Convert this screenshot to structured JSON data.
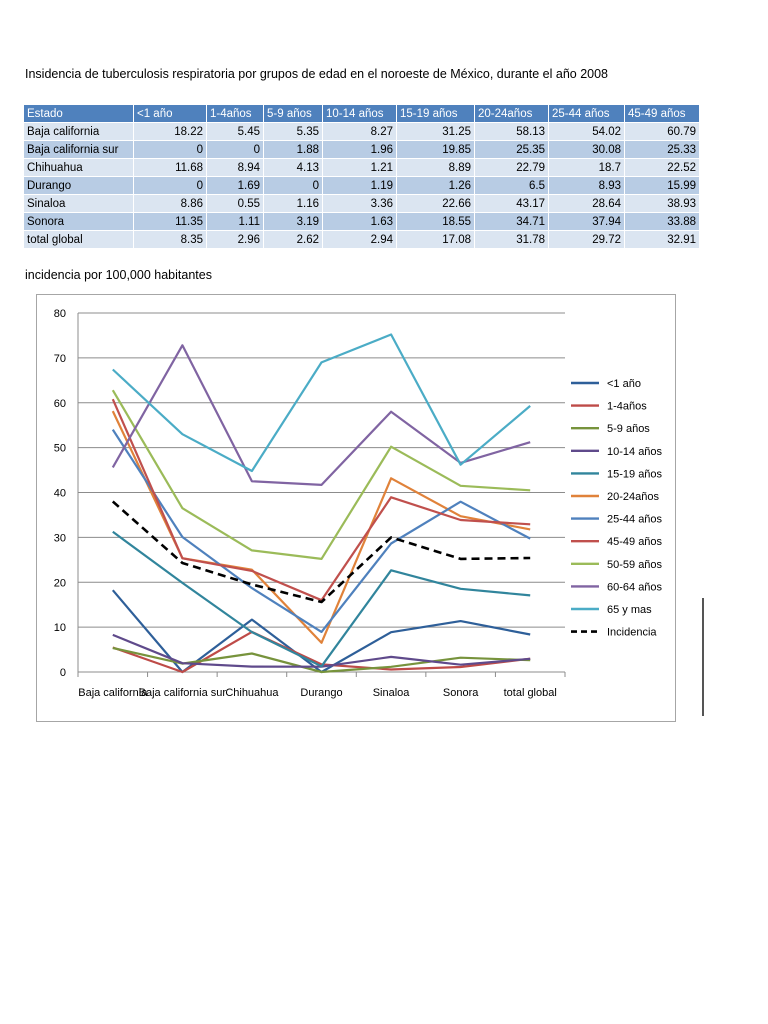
{
  "title": "Insidencia de tuberculosis respiratoria  por grupos de edad en el noroeste de México, durante el año 2008",
  "table": {
    "headers": [
      "Estado",
      "<1 año",
      "1-4años",
      "5-9 años",
      "10-14 años",
      "15-19 años",
      "20-24años",
      "25-44 años",
      "45-49 años"
    ],
    "rows": [
      [
        "Baja california",
        "18.22",
        "5.45",
        "5.35",
        "8.27",
        "31.25",
        "58.13",
        "54.02",
        "60.79"
      ],
      [
        "Baja california sur",
        "0",
        "0",
        "1.88",
        "1.96",
        "19.85",
        "25.35",
        "30.08",
        "25.33"
      ],
      [
        "Chihuahua",
        "11.68",
        "8.94",
        "4.13",
        "1.21",
        "8.89",
        "22.79",
        "18.7",
        "22.52"
      ],
      [
        "Durango",
        "0",
        "1.69",
        "0",
        "1.19",
        "1.26",
        "6.5",
        "8.93",
        "15.99"
      ],
      [
        "Sinaloa",
        "8.86",
        "0.55",
        "1.16",
        "3.36",
        "22.66",
        "43.17",
        "28.64",
        "38.93"
      ],
      [
        "Sonora",
        "11.35",
        "1.11",
        "3.19",
        "1.63",
        "18.55",
        "34.71",
        "37.94",
        "33.88"
      ],
      [
        "total global",
        "8.35",
        "2.96",
        "2.62",
        "2.94",
        "17.08",
        "31.78",
        "29.72",
        "32.91"
      ]
    ]
  },
  "subtitle": "incidencia por 100,000 habitantes",
  "chart_data": {
    "type": "line",
    "categories": [
      "Baja california",
      "Baja california sur",
      "Chihuahua",
      "Durango",
      "Sinaloa",
      "Sonora",
      "total global"
    ],
    "ylim": [
      0,
      80
    ],
    "yticks": [
      0,
      10,
      20,
      30,
      40,
      50,
      60,
      70,
      80
    ],
    "grid": true,
    "legend": "right",
    "series": [
      {
        "name": "<1 año",
        "color": "#2e5f99",
        "values": [
          18.22,
          0,
          11.68,
          0,
          8.86,
          11.35,
          8.35
        ]
      },
      {
        "name": "1-4años",
        "color": "#be4b48",
        "values": [
          5.45,
          0,
          8.94,
          1.69,
          0.55,
          1.11,
          2.96
        ]
      },
      {
        "name": "5-9 años",
        "color": "#77933c",
        "values": [
          5.35,
          1.88,
          4.13,
          0,
          1.16,
          3.19,
          2.62
        ]
      },
      {
        "name": "10-14 años",
        "color": "#5f4a8b",
        "values": [
          8.27,
          1.96,
          1.21,
          1.19,
          3.36,
          1.63,
          2.94
        ]
      },
      {
        "name": "15-19 años",
        "color": "#31859c",
        "values": [
          31.25,
          19.85,
          8.89,
          1.26,
          22.66,
          18.55,
          17.08
        ]
      },
      {
        "name": "20-24años",
        "color": "#e0823a",
        "values": [
          58.13,
          25.35,
          22.79,
          6.5,
          43.17,
          34.71,
          31.78
        ]
      },
      {
        "name": "25-44 años",
        "color": "#4f81bd",
        "values": [
          54.02,
          30.08,
          18.7,
          8.93,
          28.64,
          37.94,
          29.72
        ]
      },
      {
        "name": "45-49 años",
        "color": "#c0504d",
        "values": [
          60.79,
          25.33,
          22.52,
          15.99,
          38.93,
          33.88,
          32.91
        ]
      },
      {
        "name": "50-59 años",
        "color": "#9bbb59",
        "values": [
          62.8,
          36.5,
          27.1,
          25.2,
          50.2,
          41.5,
          40.5
        ]
      },
      {
        "name": "60-64 años",
        "color": "#8064a2",
        "values": [
          45.6,
          72.8,
          42.5,
          41.7,
          58.0,
          46.6,
          51.2
        ]
      },
      {
        "name": "65 y mas",
        "color": "#4bacc6",
        "values": [
          67.4,
          53.0,
          44.8,
          69.0,
          75.2,
          46.2,
          59.3
        ]
      },
      {
        "name": "Incidencia",
        "color": "#000000",
        "dashed": true,
        "values": [
          38.0,
          24.3,
          19.5,
          15.6,
          30.0,
          25.2,
          25.4
        ]
      }
    ]
  }
}
